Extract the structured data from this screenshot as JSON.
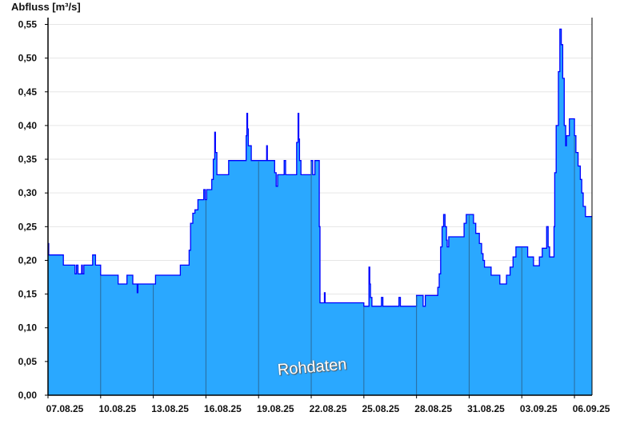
{
  "chart_data": {
    "type": "area",
    "title": "",
    "ylabel": "Abfluss [m³/s]",
    "xlabel": "",
    "ylim": [
      0,
      0.55
    ],
    "xlim": [
      "2025-08-07T00:00",
      "2025-09-07T00:00"
    ],
    "grid": true,
    "step": true,
    "y_ticks": [
      "0,00",
      "0,05",
      "0,10",
      "0,15",
      "0,20",
      "0,25",
      "0,30",
      "0,35",
      "0,40",
      "0,45",
      "0,50",
      "0,55"
    ],
    "y_tick_values": [
      0,
      0.05,
      0.1,
      0.15,
      0.2,
      0.25,
      0.3,
      0.35,
      0.4,
      0.45,
      0.5,
      0.55
    ],
    "x_ticks": [
      "07.08.25",
      "10.08.25",
      "13.08.25",
      "16.08.25",
      "19.08.25",
      "22.08.25",
      "25.08.25",
      "28.08.25",
      "31.08.25",
      "03.09.25",
      "06.09.25"
    ],
    "x_tick_values": [
      "2025-08-07T00:00",
      "2025-08-10T00:00",
      "2025-08-13T00:00",
      "2025-08-16T00:00",
      "2025-08-19T00:00",
      "2025-08-22T00:00",
      "2025-08-25T00:00",
      "2025-08-28T00:00",
      "2025-08-31T00:00",
      "2025-09-03T00:00",
      "2025-09-06T00:00"
    ],
    "annotation": "Rohdaten",
    "colors": {
      "fill": "#2aa8ff",
      "line": "#0000ff",
      "date_lines": "#2a6a9a",
      "grid": "#e6e6e6"
    },
    "series": [
      {
        "points": [
          [
            "2025-08-07T00:00",
            0.225
          ],
          [
            "2025-08-07T01:00",
            0.208
          ],
          [
            "2025-08-07T21:00",
            0.193
          ],
          [
            "2025-08-08T13:00",
            0.18
          ],
          [
            "2025-08-08T15:00",
            0.193
          ],
          [
            "2025-08-08T17:00",
            0.18
          ],
          [
            "2025-08-08T22:00",
            0.193
          ],
          [
            "2025-08-08T23:00",
            0.18
          ],
          [
            "2025-08-09T01:00",
            0.193
          ],
          [
            "2025-08-09T13:00",
            0.208
          ],
          [
            "2025-08-09T17:00",
            0.193
          ],
          [
            "2025-08-10T00:00",
            0.178
          ],
          [
            "2025-08-11T00:00",
            0.165
          ],
          [
            "2025-08-11T12:00",
            0.178
          ],
          [
            "2025-08-11T20:00",
            0.165
          ],
          [
            "2025-08-12T02:00",
            0.152
          ],
          [
            "2025-08-12T03:00",
            0.165
          ],
          [
            "2025-08-13T03:00",
            0.178
          ],
          [
            "2025-08-14T13:00",
            0.193
          ],
          [
            "2025-08-15T01:00",
            0.215
          ],
          [
            "2025-08-15T03:00",
            0.255
          ],
          [
            "2025-08-15T06:00",
            0.27
          ],
          [
            "2025-08-15T09:00",
            0.275
          ],
          [
            "2025-08-15T13:00",
            0.29
          ],
          [
            "2025-08-15T21:00",
            0.305
          ],
          [
            "2025-08-15T23:00",
            0.29
          ],
          [
            "2025-08-16T01:00",
            0.305
          ],
          [
            "2025-08-16T08:00",
            0.32
          ],
          [
            "2025-08-16T10:00",
            0.35
          ],
          [
            "2025-08-16T12:00",
            0.39
          ],
          [
            "2025-08-16T13:00",
            0.36
          ],
          [
            "2025-08-16T15:00",
            0.327
          ],
          [
            "2025-08-17T07:00",
            0.348
          ],
          [
            "2025-08-18T07:00",
            0.385
          ],
          [
            "2025-08-18T08:00",
            0.418
          ],
          [
            "2025-08-18T09:00",
            0.395
          ],
          [
            "2025-08-18T10:00",
            0.37
          ],
          [
            "2025-08-18T14:00",
            0.348
          ],
          [
            "2025-08-19T11:00",
            0.37
          ],
          [
            "2025-08-19T12:00",
            0.348
          ],
          [
            "2025-08-19T22:00",
            0.33
          ],
          [
            "2025-08-20T00:00",
            0.31
          ],
          [
            "2025-08-20T02:00",
            0.327
          ],
          [
            "2025-08-20T11:00",
            0.348
          ],
          [
            "2025-08-20T13:00",
            0.327
          ],
          [
            "2025-08-21T04:00",
            0.375
          ],
          [
            "2025-08-21T06:00",
            0.418
          ],
          [
            "2025-08-21T07:00",
            0.38
          ],
          [
            "2025-08-21T08:00",
            0.348
          ],
          [
            "2025-08-21T10:00",
            0.327
          ],
          [
            "2025-08-22T00:00",
            0.348
          ],
          [
            "2025-08-22T02:00",
            0.327
          ],
          [
            "2025-08-22T05:00",
            0.348
          ],
          [
            "2025-08-22T11:00",
            0.25
          ],
          [
            "2025-08-22T12:00",
            0.137
          ],
          [
            "2025-08-22T18:00",
            0.152
          ],
          [
            "2025-08-22T19:00",
            0.137
          ],
          [
            "2025-08-25T00:00",
            0.132
          ],
          [
            "2025-08-25T07:00",
            0.19
          ],
          [
            "2025-08-25T08:00",
            0.165
          ],
          [
            "2025-08-25T09:00",
            0.145
          ],
          [
            "2025-08-25T11:00",
            0.132
          ],
          [
            "2025-08-26T00:00",
            0.145
          ],
          [
            "2025-08-26T02:00",
            0.132
          ],
          [
            "2025-08-27T00:00",
            0.145
          ],
          [
            "2025-08-27T02:00",
            0.132
          ],
          [
            "2025-08-28T00:00",
            0.148
          ],
          [
            "2025-08-28T09:00",
            0.132
          ],
          [
            "2025-08-28T12:00",
            0.148
          ],
          [
            "2025-08-29T05:00",
            0.16
          ],
          [
            "2025-08-29T07:00",
            0.18
          ],
          [
            "2025-08-29T09:00",
            0.22
          ],
          [
            "2025-08-29T11:00",
            0.25
          ],
          [
            "2025-08-29T13:00",
            0.268
          ],
          [
            "2025-08-29T15:00",
            0.25
          ],
          [
            "2025-08-29T17:00",
            0.23
          ],
          [
            "2025-08-29T18:00",
            0.22
          ],
          [
            "2025-08-29T20:00",
            0.235
          ],
          [
            "2025-08-30T17:00",
            0.255
          ],
          [
            "2025-08-30T20:00",
            0.268
          ],
          [
            "2025-08-31T06:00",
            0.255
          ],
          [
            "2025-08-31T09:00",
            0.24
          ],
          [
            "2025-08-31T14:00",
            0.225
          ],
          [
            "2025-08-31T17:00",
            0.21
          ],
          [
            "2025-08-31T19:00",
            0.2
          ],
          [
            "2025-08-31T21:00",
            0.19
          ],
          [
            "2025-09-01T06:00",
            0.178
          ],
          [
            "2025-09-01T18:00",
            0.165
          ],
          [
            "2025-09-02T03:00",
            0.178
          ],
          [
            "2025-09-02T08:00",
            0.19
          ],
          [
            "2025-09-02T12:00",
            0.205
          ],
          [
            "2025-09-02T16:00",
            0.22
          ],
          [
            "2025-09-03T08:00",
            0.205
          ],
          [
            "2025-09-03T16:00",
            0.192
          ],
          [
            "2025-09-04T00:00",
            0.205
          ],
          [
            "2025-09-04T04:00",
            0.218
          ],
          [
            "2025-09-04T10:00",
            0.25
          ],
          [
            "2025-09-04T12:00",
            0.22
          ],
          [
            "2025-09-04T14:00",
            0.205
          ],
          [
            "2025-09-04T20:00",
            0.25
          ],
          [
            "2025-09-04T21:00",
            0.33
          ],
          [
            "2025-09-04T23:00",
            0.4
          ],
          [
            "2025-09-05T02:00",
            0.48
          ],
          [
            "2025-09-05T04:00",
            0.543
          ],
          [
            "2025-09-05T06:00",
            0.52
          ],
          [
            "2025-09-05T08:00",
            0.47
          ],
          [
            "2025-09-05T10:00",
            0.4
          ],
          [
            "2025-09-05T12:00",
            0.37
          ],
          [
            "2025-09-05T13:00",
            0.385
          ],
          [
            "2025-09-05T17:00",
            0.41
          ],
          [
            "2025-09-06T00:00",
            0.385
          ],
          [
            "2025-09-06T02:00",
            0.36
          ],
          [
            "2025-09-06T05:00",
            0.34
          ],
          [
            "2025-09-06T08:00",
            0.32
          ],
          [
            "2025-09-06T10:00",
            0.3
          ],
          [
            "2025-09-06T12:00",
            0.28
          ],
          [
            "2025-09-06T15:00",
            0.265
          ]
        ]
      }
    ]
  }
}
